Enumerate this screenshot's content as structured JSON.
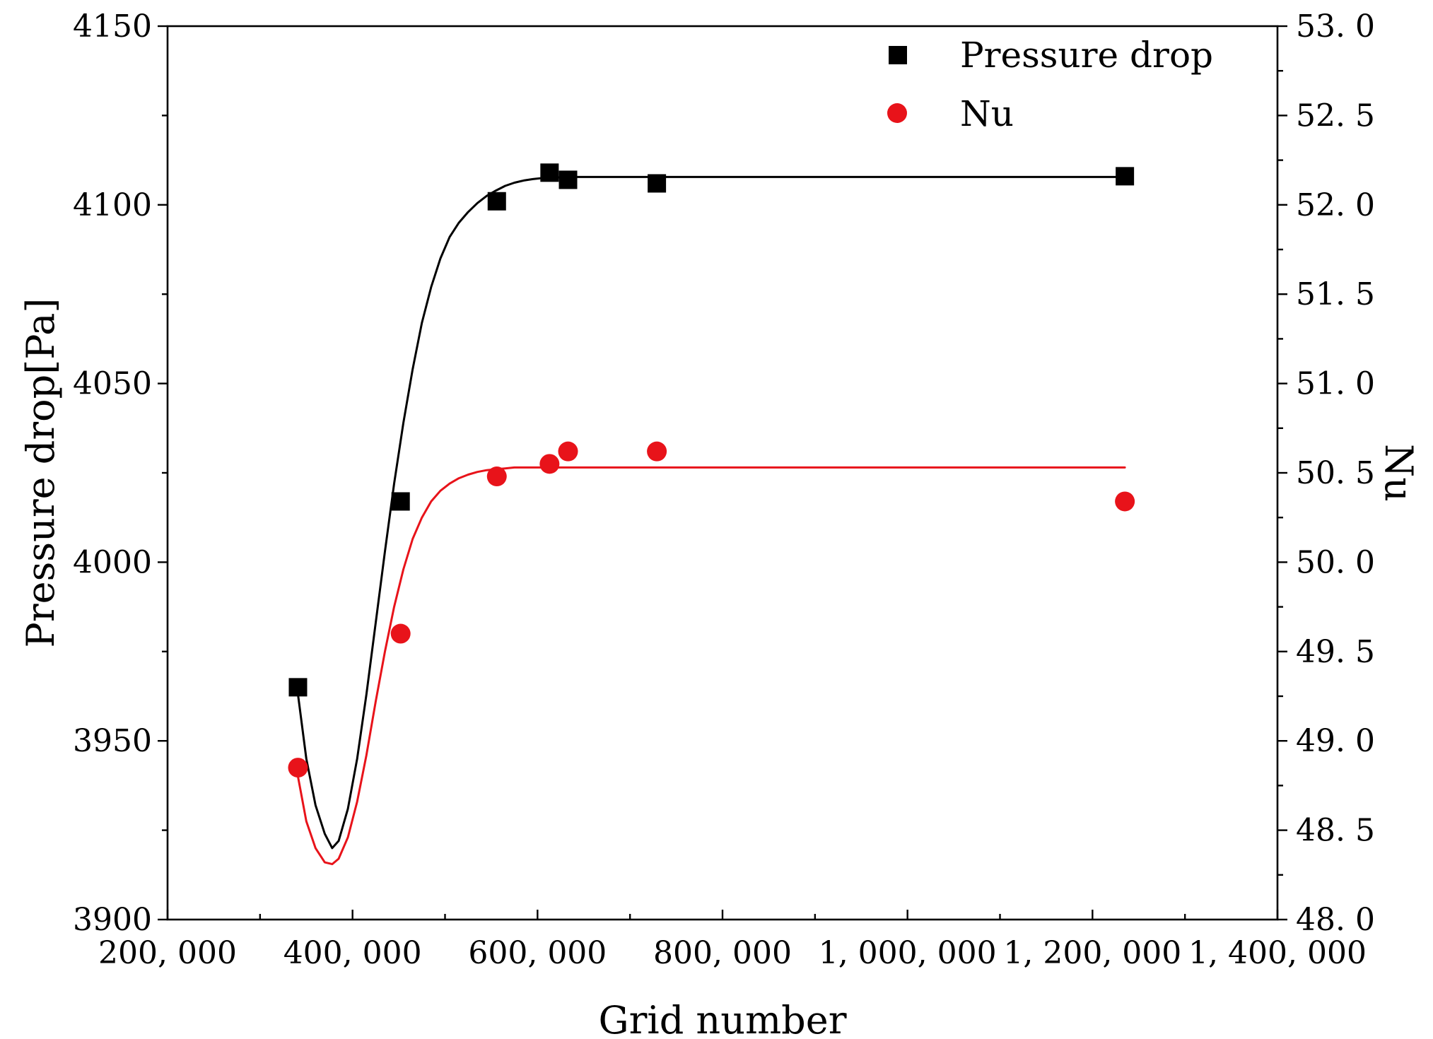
{
  "chart_data": {
    "type": "scatter",
    "title": "",
    "xlabel": "Grid number",
    "ylabel": "Pressure drop[Pa]",
    "y2label": "Nu",
    "xlim": [
      200000,
      1400000
    ],
    "ylim": [
      3900,
      4150
    ],
    "y2lim": [
      48.0,
      53.0
    ],
    "x_ticks": [
      200000,
      400000,
      600000,
      800000,
      1000000,
      1200000,
      1400000
    ],
    "x_tick_labels": [
      "200, 000",
      "400, 000",
      "600, 000",
      "800, 000",
      "1, 000, 000",
      "1, 200, 000",
      "1, 400, 000"
    ],
    "y_ticks": [
      3900,
      3950,
      4000,
      4050,
      4100,
      4150
    ],
    "y_tick_labels": [
      "3900",
      "3950",
      "4000",
      "4050",
      "4100",
      "4150"
    ],
    "y2_ticks": [
      48.0,
      48.5,
      49.0,
      49.5,
      50.0,
      50.5,
      51.0,
      51.5,
      52.0,
      52.5,
      53.0
    ],
    "y2_tick_labels": [
      "48. 0",
      "48. 5",
      "49. 0",
      "49. 5",
      "50. 0",
      "50. 5",
      "51. 0",
      "51. 5",
      "52. 0",
      "52. 5",
      "53. 0"
    ],
    "legend_position": "top-right",
    "series": [
      {
        "name": "Pressure drop",
        "axis": "left",
        "color": "#000000",
        "marker": "square",
        "x": [
          341000,
          452000,
          556000,
          613000,
          633000,
          729000,
          1235000
        ],
        "values": [
          3965,
          4017,
          4101,
          4109,
          4107,
          4106,
          4108
        ],
        "fit_x": [
          341000,
          350000,
          360000,
          370000,
          378000,
          385000,
          395000,
          405000,
          415000,
          425000,
          435000,
          445000,
          455000,
          465000,
          475000,
          485000,
          495000,
          505000,
          515000,
          525000,
          535000,
          545000,
          555000,
          565000,
          575000,
          585000,
          595000,
          605000,
          615000,
          625000,
          640000,
          660000,
          700000,
          800000,
          1000000,
          1235000
        ],
        "fit_y": [
          3963,
          3945,
          3932,
          3924,
          3920,
          3922,
          3931,
          3945,
          3963,
          3983,
          4003,
          4022,
          4039,
          4054,
          4067,
          4077,
          4085,
          4091,
          4095,
          4098,
          4100.5,
          4102.5,
          4104,
          4105.3,
          4106.2,
          4106.8,
          4107.2,
          4107.5,
          4107.6,
          4107.7,
          4107.8,
          4107.8,
          4107.8,
          4107.8,
          4107.8,
          4107.8
        ]
      },
      {
        "name": "Nu",
        "axis": "right",
        "color": "#e8131a",
        "marker": "circle",
        "x": [
          341000,
          452000,
          556000,
          613000,
          633000,
          729000,
          1235000
        ],
        "values": [
          48.85,
          49.6,
          50.48,
          50.55,
          50.62,
          50.62,
          50.34
        ],
        "fit_x": [
          341000,
          350000,
          360000,
          370000,
          378000,
          385000,
          395000,
          405000,
          415000,
          425000,
          435000,
          445000,
          455000,
          465000,
          475000,
          485000,
          495000,
          505000,
          515000,
          525000,
          535000,
          545000,
          555000,
          565000,
          575000,
          585000,
          595000,
          605000,
          615000,
          625000,
          640000,
          660000,
          700000,
          800000,
          1000000,
          1235000
        ],
        "fit_y": [
          48.8,
          48.55,
          48.4,
          48.32,
          48.31,
          48.34,
          48.46,
          48.66,
          48.92,
          49.22,
          49.5,
          49.75,
          49.96,
          50.13,
          50.25,
          50.34,
          50.4,
          50.44,
          50.47,
          50.49,
          50.505,
          50.515,
          50.52,
          50.525,
          50.53,
          50.53,
          50.53,
          50.53,
          50.53,
          50.53,
          50.53,
          50.53,
          50.53,
          50.53,
          50.53,
          50.53
        ]
      }
    ]
  }
}
